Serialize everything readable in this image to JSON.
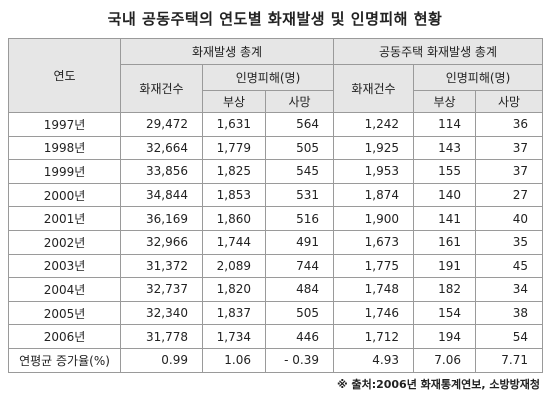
{
  "title": "국내 공동주택의 연도별 화재발생 및 인명피해 현황",
  "table": {
    "header": {
      "year": "연도",
      "group_all": "화재발생 총계",
      "group_apt": "공동주택 화재발생 총계",
      "fires_all": "화재건수",
      "casualties_all": "인명피해(명)",
      "injured_all": "부상",
      "deaths_all": "사망",
      "fires_apt": "화재건수",
      "casualties_apt": "인명피해(명)",
      "injured_apt": "부상",
      "deaths_apt": "사망"
    },
    "rows": [
      [
        "1997년",
        "29,472",
        "1,631",
        "564",
        "1,242",
        "114",
        "36"
      ],
      [
        "1998년",
        "32,664",
        "1,779",
        "505",
        "1,925",
        "143",
        "37"
      ],
      [
        "1999년",
        "33,856",
        "1,825",
        "545",
        "1,953",
        "155",
        "37"
      ],
      [
        "2000년",
        "34,844",
        "1,853",
        "531",
        "1,874",
        "140",
        "27"
      ],
      [
        "2001년",
        "36,169",
        "1,860",
        "516",
        "1,900",
        "141",
        "40"
      ],
      [
        "2002년",
        "32,966",
        "1,744",
        "491",
        "1,673",
        "161",
        "35"
      ],
      [
        "2003년",
        "31,372",
        "2,089",
        "744",
        "1,775",
        "191",
        "45"
      ],
      [
        "2004년",
        "32,737",
        "1,820",
        "484",
        "1,748",
        "182",
        "34"
      ],
      [
        "2005년",
        "32,340",
        "1,837",
        "505",
        "1,746",
        "154",
        "38"
      ],
      [
        "2006년",
        "31,778",
        "1,734",
        "446",
        "1,712",
        "194",
        "54"
      ],
      [
        "연평균 증가율(%)",
        "0.99",
        "1.06",
        "- 0.39",
        "4.93",
        "7.06",
        "7.71"
      ]
    ]
  },
  "note": "※ 출처:2006년 화재통계연보, 소방방재청"
}
